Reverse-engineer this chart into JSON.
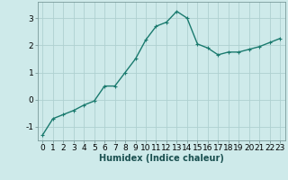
{
  "x": [
    0,
    1,
    2,
    3,
    4,
    5,
    6,
    7,
    8,
    9,
    10,
    11,
    12,
    13,
    14,
    15,
    16,
    17,
    18,
    19,
    20,
    21,
    22,
    23
  ],
  "y": [
    -1.3,
    -0.7,
    -0.55,
    -0.4,
    -0.2,
    -0.05,
    0.5,
    0.5,
    1.0,
    1.5,
    2.2,
    2.7,
    2.85,
    3.25,
    3.0,
    2.05,
    1.9,
    1.65,
    1.75,
    1.75,
    1.85,
    1.95,
    2.1,
    2.25
  ],
  "line_color": "#1a7a6e",
  "marker": "+",
  "marker_size": 3,
  "linewidth": 1.0,
  "bg_color": "#ceeaea",
  "grid_color": "#aed0d0",
  "xlabel": "Humidex (Indice chaleur)",
  "xlabel_fontsize": 7,
  "tick_fontsize": 6.5,
  "ylim": [
    -1.5,
    3.6
  ],
  "xlim": [
    -0.5,
    23.5
  ],
  "yticks": [
    -1,
    0,
    1,
    2,
    3
  ],
  "xticks": [
    0,
    1,
    2,
    3,
    4,
    5,
    6,
    7,
    8,
    9,
    10,
    11,
    12,
    13,
    14,
    15,
    16,
    17,
    18,
    19,
    20,
    21,
    22,
    23
  ],
  "figsize": [
    3.2,
    2.0
  ],
  "dpi": 100
}
